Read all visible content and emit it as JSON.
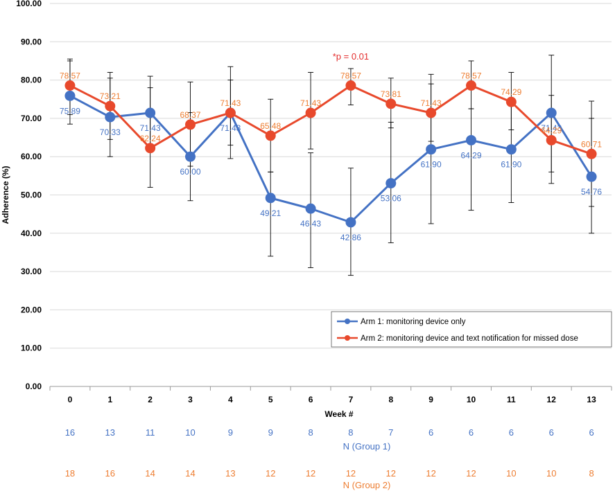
{
  "chart_data": {
    "type": "line",
    "xlabel": "Week #",
    "ylabel": "Adherence (%)",
    "ylim": [
      0,
      100
    ],
    "yticks": [
      "0.00",
      "10.00",
      "20.00",
      "30.00",
      "40.00",
      "50.00",
      "60.00",
      "70.00",
      "80.00",
      "90.00",
      "100.00"
    ],
    "x": [
      "0",
      "1",
      "2",
      "3",
      "4",
      "5",
      "6",
      "7",
      "8",
      "9",
      "10",
      "11",
      "12",
      "13"
    ],
    "grid": "horizontal",
    "legend_position": "lower-right",
    "annotation": {
      "text": "*p = 0.01",
      "x": "7",
      "color": "#e32c2c"
    },
    "series": [
      {
        "name": "Arm 1: monitoring device only",
        "color": "#4472c4",
        "label_color": "#4472c4",
        "values": [
          75.89,
          70.33,
          71.43,
          60.0,
          71.43,
          49.21,
          46.43,
          42.86,
          53.06,
          61.9,
          64.29,
          61.9,
          71.43,
          54.76
        ],
        "labels": [
          "75.89",
          "70.33",
          "71.43",
          "60.00",
          "71.43",
          "49.21",
          "46.43",
          "42.86",
          "53.06",
          "61.90",
          "64.29",
          "61.90",
          "71.43",
          "54.76"
        ],
        "error_high": [
          85.0,
          80.5,
          81.0,
          71.5,
          80.0,
          56.0,
          61.0,
          57.0,
          69.0,
          79.0,
          72.5,
          75.0,
          86.5,
          70.0
        ],
        "error_low": [
          68.5,
          60.0,
          62.0,
          48.5,
          63.0,
          34.0,
          31.0,
          29.0,
          37.5,
          42.5,
          46.0,
          48.0,
          56.0,
          40.0
        ]
      },
      {
        "name": "Arm 2: monitoring device and text notification for missed dose",
        "color": "#e8492c",
        "label_color": "#ed7d31",
        "values": [
          78.57,
          73.21,
          62.24,
          68.37,
          71.43,
          65.48,
          71.43,
          78.57,
          73.81,
          71.43,
          78.57,
          74.29,
          64.29,
          60.71
        ],
        "labels": [
          "78.57",
          "73.21",
          "62.24",
          "68.37",
          "71.43",
          "65.48",
          "71.43",
          "78.57",
          "73.81",
          "71.43",
          "78.57",
          "74.29",
          "64.29",
          "60.71"
        ],
        "error_high": [
          85.5,
          82.0,
          78.0,
          79.5,
          83.5,
          75.0,
          82.0,
          83.0,
          80.5,
          81.5,
          85.0,
          82.0,
          76.0,
          74.5
        ],
        "error_low": [
          71.0,
          64.5,
          52.0,
          57.5,
          59.5,
          56.0,
          62.0,
          73.5,
          67.5,
          64.0,
          72.5,
          67.0,
          53.0,
          47.0
        ]
      }
    ],
    "n_tables": [
      {
        "title": "N (Group 1)",
        "color": "#4472c4",
        "values": [
          "16",
          "13",
          "11",
          "10",
          "9",
          "9",
          "8",
          "8",
          "7",
          "6",
          "6",
          "6",
          "6",
          "6"
        ]
      },
      {
        "title": "N (Group 2)",
        "color": "#ed7d31",
        "values": [
          "18",
          "16",
          "14",
          "14",
          "13",
          "12",
          "12",
          "12",
          "12",
          "12",
          "12",
          "10",
          "10",
          "8"
        ]
      }
    ]
  }
}
